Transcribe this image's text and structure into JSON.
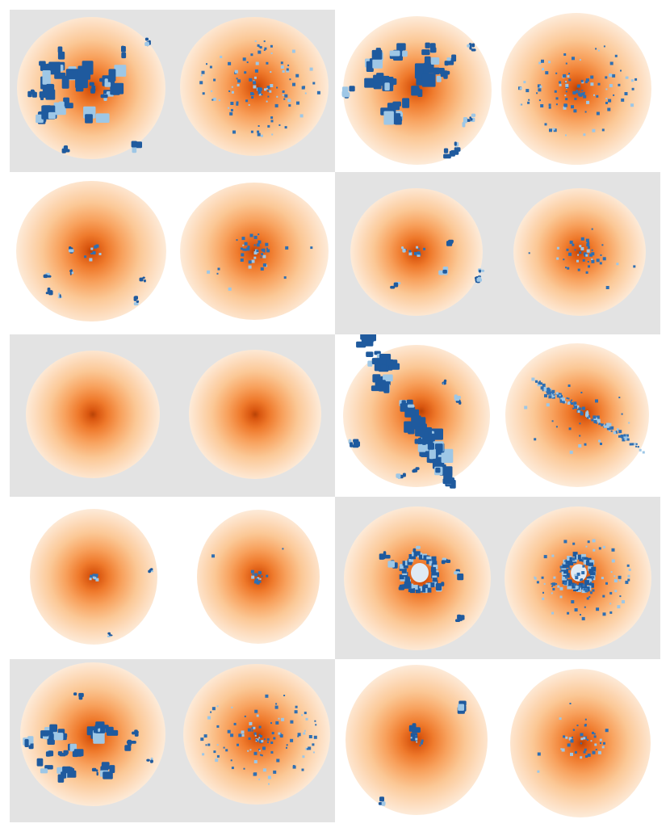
{
  "figure": {
    "layout": {
      "rows": 5,
      "cols": 2
    },
    "panels": [
      {
        "id": "r1c1",
        "background": "gray",
        "gas_pattern": "large-clumps",
        "star_pattern": "scattered-points"
      },
      {
        "id": "r1c2",
        "background": "white",
        "gas_pattern": "large-clumps",
        "star_pattern": "scattered-points"
      },
      {
        "id": "r2c1",
        "background": "white",
        "gas_pattern": "sparse-clumps",
        "star_pattern": "central-points"
      },
      {
        "id": "r2c2",
        "background": "gray",
        "gas_pattern": "sparse-clumps",
        "star_pattern": "central-points"
      },
      {
        "id": "r3c1",
        "background": "gray",
        "gas_pattern": "none",
        "star_pattern": "none"
      },
      {
        "id": "r3c2",
        "background": "white",
        "gas_pattern": "elongated-stream",
        "star_pattern": "elongated-points"
      },
      {
        "id": "r4c1",
        "background": "white",
        "gas_pattern": "central-speck",
        "star_pattern": "central-speck"
      },
      {
        "id": "r4c2",
        "background": "gray",
        "gas_pattern": "central-ring",
        "star_pattern": "central-ring"
      },
      {
        "id": "r5c1",
        "background": "gray",
        "gas_pattern": "left-clumps",
        "star_pattern": "scattered-points"
      },
      {
        "id": "r5c2",
        "background": "white",
        "gas_pattern": "central-blob",
        "star_pattern": "central-points"
      }
    ],
    "colors": {
      "gray_bg": "#e3e3e3",
      "white_bg": "#ffffff",
      "halo_edge": "#fdebd9",
      "halo_mid": "#f8a25e",
      "halo_center": "#b84307",
      "gas_dark": "#1f5a9e",
      "gas_light": "#9ec7e6",
      "star_point": "#2f6fb2"
    }
  }
}
